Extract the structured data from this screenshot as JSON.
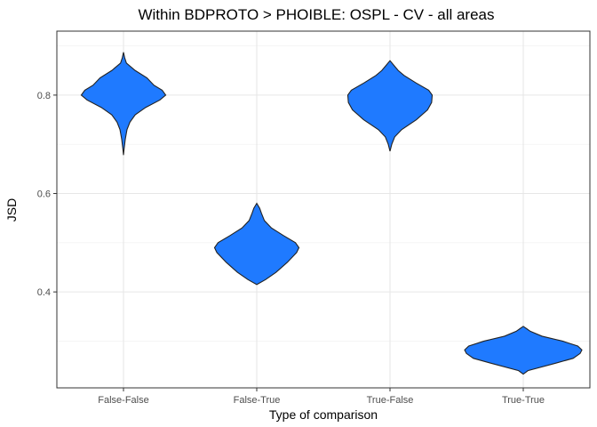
{
  "chart_data": {
    "type": "violin",
    "title": "Within BDPROTO > PHOIBLE: OSPL - CV - all areas",
    "xlabel": "Type of comparison",
    "ylabel": "JSD",
    "categories": [
      "False-False",
      "False-True",
      "True-False",
      "True-True"
    ],
    "yticks": [
      0.4,
      0.6,
      0.8
    ],
    "ytick_labels": [
      "0.4",
      "0.6",
      "0.8"
    ],
    "ylim": [
      0.205,
      0.93
    ],
    "grid": true,
    "fill_color": "#1f7aff",
    "series": [
      {
        "category": "False-False",
        "density": [
          [
            0.678,
            0.0
          ],
          [
            0.69,
            0.01
          ],
          [
            0.71,
            0.03
          ],
          [
            0.73,
            0.06
          ],
          [
            0.745,
            0.11
          ],
          [
            0.76,
            0.2
          ],
          [
            0.775,
            0.38
          ],
          [
            0.79,
            0.62
          ],
          [
            0.8,
            0.72
          ],
          [
            0.81,
            0.66
          ],
          [
            0.82,
            0.52
          ],
          [
            0.835,
            0.4
          ],
          [
            0.85,
            0.2
          ],
          [
            0.865,
            0.05
          ],
          [
            0.876,
            0.02
          ],
          [
            0.887,
            0.0
          ]
        ]
      },
      {
        "category": "False-True",
        "density": [
          [
            0.415,
            0.0
          ],
          [
            0.425,
            0.15
          ],
          [
            0.44,
            0.33
          ],
          [
            0.46,
            0.52
          ],
          [
            0.48,
            0.68
          ],
          [
            0.49,
            0.72
          ],
          [
            0.5,
            0.66
          ],
          [
            0.515,
            0.45
          ],
          [
            0.53,
            0.25
          ],
          [
            0.545,
            0.13
          ],
          [
            0.56,
            0.08
          ],
          [
            0.57,
            0.05
          ],
          [
            0.58,
            0.0
          ]
        ]
      },
      {
        "category": "True-False",
        "density": [
          [
            0.686,
            0.0
          ],
          [
            0.7,
            0.03
          ],
          [
            0.715,
            0.08
          ],
          [
            0.73,
            0.2
          ],
          [
            0.75,
            0.45
          ],
          [
            0.77,
            0.64
          ],
          [
            0.785,
            0.71
          ],
          [
            0.8,
            0.72
          ],
          [
            0.81,
            0.66
          ],
          [
            0.825,
            0.44
          ],
          [
            0.84,
            0.24
          ],
          [
            0.85,
            0.14
          ],
          [
            0.86,
            0.07
          ],
          [
            0.87,
            0.0
          ]
        ]
      },
      {
        "category": "True-True",
        "density": [
          [
            0.233,
            0.0
          ],
          [
            0.24,
            0.08
          ],
          [
            0.255,
            0.55
          ],
          [
            0.265,
            0.85
          ],
          [
            0.275,
            0.97
          ],
          [
            0.282,
            1.0
          ],
          [
            0.29,
            0.93
          ],
          [
            0.3,
            0.67
          ],
          [
            0.31,
            0.32
          ],
          [
            0.32,
            0.12
          ],
          [
            0.325,
            0.06
          ],
          [
            0.33,
            0.0
          ]
        ]
      }
    ]
  }
}
